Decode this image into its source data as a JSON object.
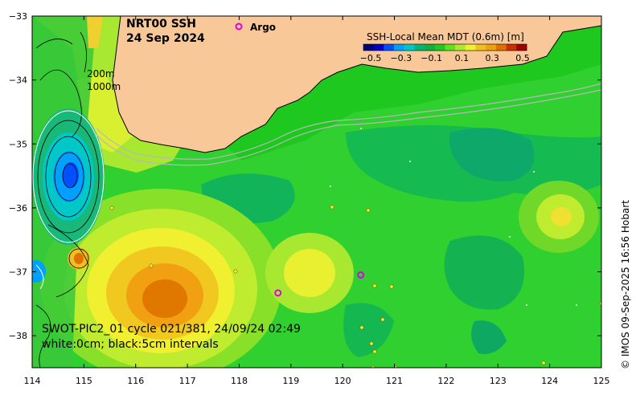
{
  "map": {
    "title_line1": "NRT00 SSH",
    "title_line2": "24 Sep 2024",
    "argo_label": "Argo",
    "depth_label_1": "200m",
    "depth_label_2": "1000m",
    "swot_line1": "SWOT-PIC2_01 cycle 021/381, 24/09/24 02:49",
    "swot_line2": "white:0cm; black:5cm intervals",
    "credit": "© IMOS 09-Sep-2025 16:56 Hobart"
  },
  "colorbar": {
    "title": "SSH-Local Mean MDT (0.6m) [m]",
    "tick_labels": [
      "−0.5",
      "−0.3",
      "−0.1",
      "0.1",
      "0.3",
      "0.5"
    ],
    "colors": [
      "#00007a",
      "#0000c8",
      "#0050ff",
      "#00a0ff",
      "#00c8c8",
      "#00b478",
      "#10b040",
      "#20c820",
      "#60e020",
      "#b0e830",
      "#f0f030",
      "#f0c020",
      "#f0a010",
      "#e07000",
      "#c83000",
      "#a00000"
    ]
  },
  "axes": {
    "x_ticks": [
      "114",
      "115",
      "116",
      "117",
      "118",
      "119",
      "120",
      "121",
      "122",
      "123",
      "124",
      "125"
    ],
    "y_ticks": [
      "−33",
      "−34",
      "−35",
      "−36",
      "−37",
      "−38"
    ],
    "x_range": [
      114,
      125
    ],
    "y_range": [
      -38.5,
      -33
    ]
  },
  "colors": {
    "land": "#f8c898",
    "ocean_base": "#1fc81f",
    "argo_marker": "#e000e0"
  },
  "argo_floats": [
    {
      "lon": 118.75,
      "lat": -37.33
    },
    {
      "lon": 120.35,
      "lat": -37.05
    }
  ]
}
